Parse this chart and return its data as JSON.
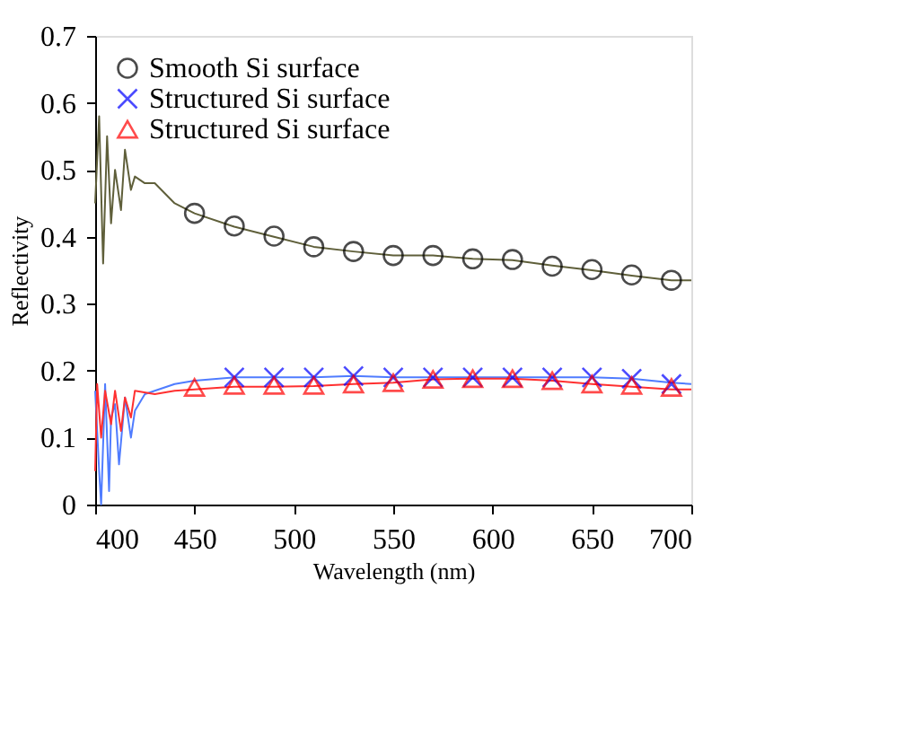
{
  "chart_data": {
    "type": "line",
    "xlabel": "Wavelength (nm)",
    "ylabel": "Reflectivity",
    "xlim": [
      400,
      700
    ],
    "xticks": [
      400,
      450,
      500,
      550,
      600,
      650,
      700
    ],
    "ylim": [
      0,
      0.7
    ],
    "yticks": [
      0,
      0.1,
      0.2,
      0.3,
      0.4,
      0.5,
      0.6,
      0.7
    ],
    "grid": false,
    "legend": "top left",
    "series": [
      {
        "type": "line",
        "marker": "none",
        "color": "#5f5f3a",
        "x": [
          400,
          402,
          404,
          406,
          408,
          410,
          413,
          415,
          418,
          420,
          425,
          430,
          440,
          450,
          470,
          490,
          510,
          530,
          550,
          570,
          590,
          610,
          630,
          650,
          670,
          690,
          700
        ],
        "values": [
          0.45,
          0.58,
          0.36,
          0.55,
          0.42,
          0.5,
          0.44,
          0.53,
          0.47,
          0.49,
          0.48,
          0.48,
          0.45,
          0.435,
          0.415,
          0.4,
          0.385,
          0.378,
          0.372,
          0.372,
          0.367,
          0.365,
          0.357,
          0.35,
          0.342,
          0.335,
          0.335
        ]
      },
      {
        "type": "line",
        "marker": "none",
        "color": "#4f7cff",
        "x": [
          400,
          402,
          403,
          405,
          407,
          408,
          410,
          412,
          415,
          418,
          420,
          425,
          430,
          440,
          450,
          470,
          490,
          510,
          530,
          550,
          570,
          590,
          610,
          630,
          650,
          670,
          690,
          700
        ],
        "values": [
          0.17,
          0.05,
          0.0,
          0.18,
          0.02,
          0.13,
          0.15,
          0.06,
          0.16,
          0.1,
          0.14,
          0.165,
          0.17,
          0.18,
          0.185,
          0.19,
          0.19,
          0.19,
          0.192,
          0.19,
          0.19,
          0.19,
          0.19,
          0.19,
          0.19,
          0.188,
          0.182,
          0.18
        ]
      },
      {
        "type": "line",
        "marker": "none",
        "color": "#ff3030",
        "x": [
          400,
          401,
          403,
          405,
          408,
          410,
          413,
          415,
          418,
          420,
          430,
          440,
          450,
          470,
          490,
          510,
          530,
          550,
          570,
          590,
          610,
          630,
          650,
          670,
          690,
          700
        ],
        "values": [
          0.05,
          0.18,
          0.1,
          0.17,
          0.12,
          0.17,
          0.11,
          0.16,
          0.13,
          0.17,
          0.165,
          0.17,
          0.172,
          0.176,
          0.176,
          0.177,
          0.18,
          0.182,
          0.187,
          0.188,
          0.188,
          0.185,
          0.18,
          0.176,
          0.172,
          0.172
        ]
      },
      {
        "type": "scatter",
        "name": "Smooth Si surface",
        "marker": "circle",
        "color": "#000000",
        "x": [
          450,
          470,
          490,
          510,
          530,
          550,
          570,
          590,
          610,
          630,
          650,
          670,
          690
        ],
        "values": [
          0.435,
          0.416,
          0.401,
          0.385,
          0.378,
          0.372,
          0.372,
          0.367,
          0.366,
          0.356,
          0.351,
          0.343,
          0.335
        ]
      },
      {
        "type": "scatter",
        "name": "Structured Si surface",
        "marker": "cross",
        "color": "#0000ff",
        "x": [
          470,
          490,
          510,
          530,
          550,
          570,
          590,
          610,
          630,
          650,
          670,
          690
        ],
        "values": [
          0.19,
          0.19,
          0.19,
          0.192,
          0.19,
          0.19,
          0.19,
          0.19,
          0.19,
          0.19,
          0.188,
          0.18
        ]
      },
      {
        "type": "scatter",
        "name": "Structured Si surface",
        "marker": "triangle",
        "color": "#ff0000",
        "x": [
          450,
          470,
          490,
          510,
          530,
          550,
          570,
          590,
          610,
          630,
          650,
          670,
          690
        ],
        "values": [
          0.175,
          0.178,
          0.178,
          0.178,
          0.18,
          0.182,
          0.187,
          0.188,
          0.188,
          0.185,
          0.18,
          0.178,
          0.175
        ]
      }
    ]
  }
}
